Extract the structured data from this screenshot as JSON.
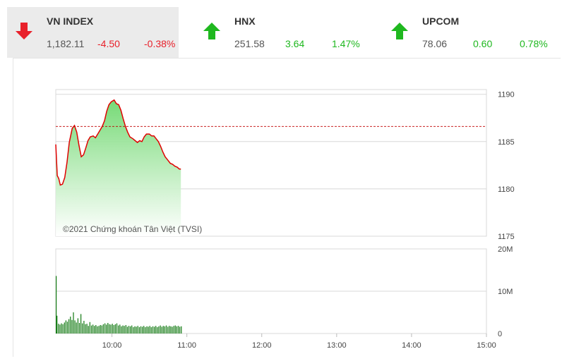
{
  "indices": [
    {
      "name": "VN INDEX",
      "value": "1,182.11",
      "change": "-4.50",
      "percent": "-0.38%",
      "direction": "down",
      "color": "#e8202a",
      "icon": "arrow-down-icon",
      "active": true
    },
    {
      "name": "HNX",
      "value": "251.58",
      "change": "3.64",
      "percent": "1.47%",
      "direction": "up",
      "color": "#1fb81f",
      "icon": "arrow-up-icon",
      "active": false
    },
    {
      "name": "UPCOM",
      "value": "78.06",
      "change": "0.60",
      "percent": "0.78%",
      "direction": "up",
      "color": "#1fb81f",
      "icon": "arrow-up-icon",
      "active": false
    }
  ],
  "chart_data": {
    "type": "area",
    "watermark": "©2021 Chứng khoán Tân Việt (TVSI)",
    "reference_price": 1186.6,
    "colors": {
      "line": "#e00000",
      "fill_top": "#6fd86f",
      "volume": "#127a12",
      "reference": "#c00000"
    },
    "price_axis": {
      "ticks": [
        "1190",
        "1185",
        "1180",
        "1175"
      ],
      "values": [
        1190,
        1185,
        1180,
        1175
      ],
      "ylim": [
        1175,
        1190.5
      ]
    },
    "volume_axis": {
      "ticks": [
        "20M",
        "10M",
        "0"
      ],
      "values": [
        20,
        10,
        0
      ],
      "ylim": [
        0,
        20
      ]
    },
    "time_axis": {
      "ticks": [
        "10:00",
        "11:00",
        "12:00",
        "13:00",
        "14:00",
        "15:00"
      ],
      "hours": [
        10,
        11,
        12,
        13,
        14,
        15
      ],
      "xlim": [
        9.25,
        15
      ]
    },
    "price_series": [
      [
        9.25,
        1184.7
      ],
      [
        9.27,
        1181.4
      ],
      [
        9.29,
        1181.1
      ],
      [
        9.31,
        1180.4
      ],
      [
        9.34,
        1180.5
      ],
      [
        9.37,
        1181.2
      ],
      [
        9.4,
        1182.8
      ],
      [
        9.43,
        1184.9
      ],
      [
        9.47,
        1186.4
      ],
      [
        9.5,
        1186.7
      ],
      [
        9.53,
        1186.0
      ],
      [
        9.56,
        1184.6
      ],
      [
        9.59,
        1183.4
      ],
      [
        9.62,
        1183.6
      ],
      [
        9.65,
        1184.3
      ],
      [
        9.68,
        1185.1
      ],
      [
        9.71,
        1185.5
      ],
      [
        9.75,
        1185.6
      ],
      [
        9.78,
        1185.4
      ],
      [
        9.81,
        1185.8
      ],
      [
        9.84,
        1186.2
      ],
      [
        9.87,
        1186.6
      ],
      [
        9.9,
        1187.2
      ],
      [
        9.93,
        1188.2
      ],
      [
        9.96,
        1188.9
      ],
      [
        9.99,
        1189.2
      ],
      [
        10.03,
        1189.4
      ],
      [
        10.06,
        1189.0
      ],
      [
        10.09,
        1188.9
      ],
      [
        10.12,
        1188.3
      ],
      [
        10.15,
        1187.4
      ],
      [
        10.18,
        1186.6
      ],
      [
        10.21,
        1186.0
      ],
      [
        10.24,
        1185.5
      ],
      [
        10.28,
        1185.3
      ],
      [
        10.31,
        1185.1
      ],
      [
        10.34,
        1184.9
      ],
      [
        10.37,
        1185.1
      ],
      [
        10.4,
        1185.0
      ],
      [
        10.43,
        1185.5
      ],
      [
        10.46,
        1185.8
      ],
      [
        10.5,
        1185.8
      ],
      [
        10.53,
        1185.6
      ],
      [
        10.56,
        1185.6
      ],
      [
        10.59,
        1185.3
      ],
      [
        10.62,
        1185.0
      ],
      [
        10.65,
        1184.5
      ],
      [
        10.68,
        1183.9
      ],
      [
        10.71,
        1183.4
      ],
      [
        10.74,
        1183.1
      ],
      [
        10.78,
        1182.7
      ],
      [
        10.81,
        1182.6
      ],
      [
        10.84,
        1182.4
      ],
      [
        10.87,
        1182.3
      ],
      [
        10.9,
        1182.1
      ],
      [
        10.92,
        1182.1
      ]
    ],
    "volume_series": [
      [
        9.25,
        13.6
      ],
      [
        9.26,
        4.2
      ],
      [
        9.28,
        2.3
      ],
      [
        9.3,
        2.1
      ],
      [
        9.32,
        2.4
      ],
      [
        9.34,
        2.2
      ],
      [
        9.36,
        2.6
      ],
      [
        9.38,
        3.1
      ],
      [
        9.4,
        2.8
      ],
      [
        9.42,
        3.4
      ],
      [
        9.44,
        4.0
      ],
      [
        9.46,
        3.2
      ],
      [
        9.48,
        5.0
      ],
      [
        9.5,
        3.1
      ],
      [
        9.52,
        2.6
      ],
      [
        9.54,
        3.6
      ],
      [
        9.56,
        2.5
      ],
      [
        9.58,
        4.6
      ],
      [
        9.6,
        2.4
      ],
      [
        9.62,
        3.0
      ],
      [
        9.64,
        2.2
      ],
      [
        9.66,
        2.3
      ],
      [
        9.68,
        1.8
      ],
      [
        9.7,
        2.7
      ],
      [
        9.72,
        1.9
      ],
      [
        9.74,
        2.1
      ],
      [
        9.76,
        1.8
      ],
      [
        9.78,
        2.0
      ],
      [
        9.8,
        1.7
      ],
      [
        9.82,
        1.8
      ],
      [
        9.84,
        2.0
      ],
      [
        9.86,
        1.9
      ],
      [
        9.88,
        2.2
      ],
      [
        9.9,
        2.4
      ],
      [
        9.92,
        2.1
      ],
      [
        9.94,
        2.5
      ],
      [
        9.96,
        2.2
      ],
      [
        9.98,
        2.1
      ],
      [
        10.0,
        2.3
      ],
      [
        10.02,
        2.0
      ],
      [
        10.04,
        2.2
      ],
      [
        10.06,
        2.4
      ],
      [
        10.08,
        1.9
      ],
      [
        10.1,
        2.1
      ],
      [
        10.12,
        1.7
      ],
      [
        10.14,
        1.9
      ],
      [
        10.16,
        1.8
      ],
      [
        10.18,
        2.0
      ],
      [
        10.2,
        1.6
      ],
      [
        10.22,
        1.8
      ],
      [
        10.24,
        1.7
      ],
      [
        10.26,
        1.9
      ],
      [
        10.28,
        1.5
      ],
      [
        10.3,
        1.7
      ],
      [
        10.32,
        1.6
      ],
      [
        10.34,
        1.8
      ],
      [
        10.36,
        1.5
      ],
      [
        10.38,
        1.7
      ],
      [
        10.4,
        1.6
      ],
      [
        10.42,
        1.8
      ],
      [
        10.44,
        1.5
      ],
      [
        10.46,
        1.7
      ],
      [
        10.48,
        1.6
      ],
      [
        10.5,
        1.8
      ],
      [
        10.52,
        1.5
      ],
      [
        10.54,
        1.7
      ],
      [
        10.56,
        1.6
      ],
      [
        10.58,
        1.8
      ],
      [
        10.6,
        1.5
      ],
      [
        10.62,
        1.7
      ],
      [
        10.64,
        1.9
      ],
      [
        10.66,
        1.6
      ],
      [
        10.68,
        1.8
      ],
      [
        10.7,
        1.7
      ],
      [
        10.72,
        1.9
      ],
      [
        10.74,
        1.6
      ],
      [
        10.76,
        1.8
      ],
      [
        10.78,
        1.7
      ],
      [
        10.8,
        1.6
      ],
      [
        10.82,
        1.8
      ],
      [
        10.84,
        1.9
      ],
      [
        10.86,
        1.7
      ],
      [
        10.88,
        1.8
      ],
      [
        10.9,
        1.6
      ],
      [
        10.92,
        1.7
      ]
    ]
  }
}
